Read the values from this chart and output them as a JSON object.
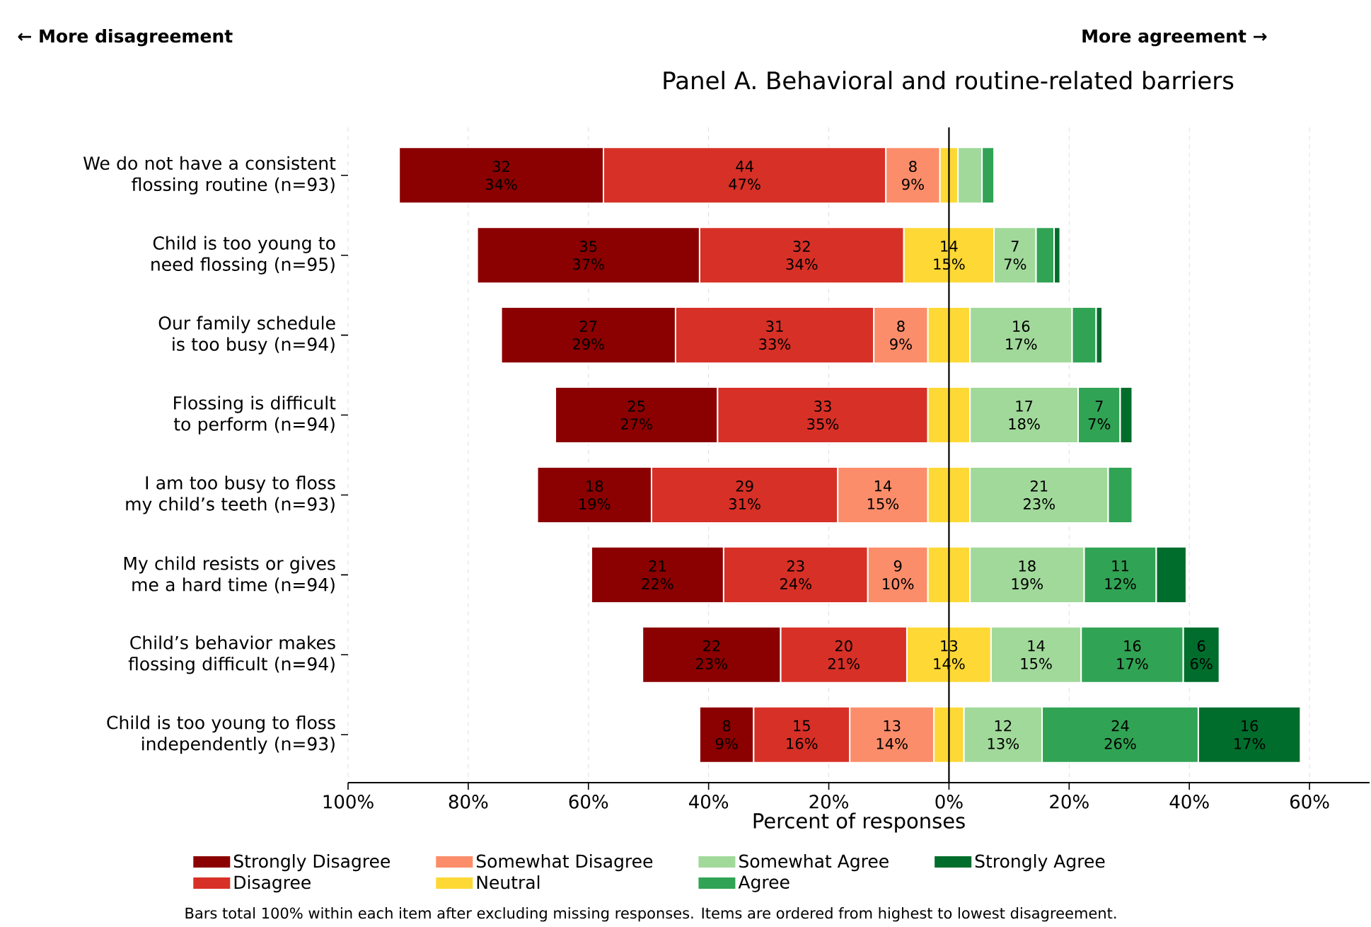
{
  "chart_data": {
    "type": "bar",
    "orientation": "horizontal",
    "title": "Panel A. Behavioral and routine-related barriers",
    "xlabel": "Percent of responses",
    "annotations": [
      "← More disagreement",
      "More agreement →",
      "Bars total 100% within each item after excluding missing responses. Items are ordered from highest to lowest disagreement."
    ],
    "categories": [
      "We do not have a consistent flossing routine (n=93)",
      "Child is too young to need flossing (n=95)",
      "Our family schedule is too busy (n=94)",
      "Flossing is difficult to perform (n=94)",
      "I am too busy to floss my child’s teeth (n=93)",
      "My child resists or gives me a hard time (n=94)",
      "Child’s behavior makes flossing difficult (n=94)",
      "Child is too young to floss independently (n=93)"
    ],
    "series": [
      {
        "name": "Strongly Disagree",
        "color": "#8b0000",
        "values": [
          34,
          37,
          29,
          27,
          19,
          22,
          23,
          9
        ],
        "base": [
          -91.5,
          -78.5,
          -74.5,
          -65.5,
          -68.5,
          -59.5,
          -51,
          -41.5
        ],
        "value_labels": [
          "32 34%",
          "35 37%",
          "27 29%",
          "25 27%",
          "18 19%",
          "21 22%",
          "22 23%",
          "8 9%"
        ]
      },
      {
        "name": "Disagree",
        "color": "#d73027",
        "values": [
          47,
          34,
          33,
          35,
          31,
          24,
          21,
          16
        ],
        "base": [
          -57.5,
          -41.5,
          -45.5,
          -38.5,
          -49.5,
          -37.5,
          -28,
          -32.5
        ],
        "value_labels": [
          "44 47%",
          "32 34%",
          "31 33%",
          "33 35%",
          "29 31%",
          "23 24%",
          "20 21%",
          "15 16%"
        ]
      },
      {
        "name": "Somewhat Disagree",
        "color": "#fc8d6a",
        "values": [
          9,
          null,
          9,
          null,
          15,
          10,
          null,
          14
        ],
        "base": [
          -10.5,
          null,
          -12.5,
          null,
          -18.5,
          -13.5,
          null,
          -16.5
        ],
        "value_labels": [
          "8 9%",
          null,
          "8 9%",
          null,
          "14 15%",
          "9 10%",
          null,
          "13 14%"
        ]
      },
      {
        "name": "Neutral",
        "color": "#fed835",
        "values": [
          3,
          15,
          7,
          7,
          7,
          7,
          14,
          5
        ],
        "base": [
          -1.5,
          -7.5,
          -3.5,
          -3.5,
          -3.5,
          -3.5,
          -7,
          -2.5
        ],
        "value_labels": [
          null,
          "14 15%",
          null,
          null,
          null,
          null,
          "13 14%",
          null
        ]
      },
      {
        "name": "Somewhat Agree",
        "color": "#a1d99b",
        "values": [
          4,
          7,
          17,
          18,
          23,
          19,
          15,
          13
        ],
        "base": [
          1.5,
          7.5,
          3.5,
          3.5,
          3.5,
          3.5,
          7,
          2.5
        ],
        "value_labels": [
          null,
          "7 7%",
          "16 17%",
          "17 18%",
          "21 23%",
          "18 19%",
          "14 15%",
          "12 13%"
        ]
      },
      {
        "name": "Agree",
        "color": "#31a354",
        "values": [
          2,
          3,
          4,
          7,
          4,
          12,
          17,
          26
        ],
        "base": [
          5.5,
          14.5,
          20.5,
          21.5,
          26.5,
          22.5,
          22,
          15.5
        ],
        "value_labels": [
          null,
          null,
          null,
          "7 7%",
          null,
          "11 12%",
          "16 17%",
          "24 26%"
        ]
      },
      {
        "name": "Strongly Agree",
        "color": "#006d2c",
        "values": [
          null,
          1,
          1,
          2,
          null,
          5,
          6,
          17
        ],
        "base": [
          null,
          17.5,
          24.5,
          28.5,
          null,
          34.5,
          39,
          41.5
        ],
        "value_labels": [
          null,
          null,
          null,
          null,
          null,
          null,
          "6 6%",
          "16 17%"
        ]
      }
    ],
    "xlim": [
      -100,
      70
    ],
    "xticks": [
      {
        "value": -100,
        "label": "100%"
      },
      {
        "value": -80,
        "label": "80%"
      },
      {
        "value": -60,
        "label": "60%"
      },
      {
        "value": -40,
        "label": "40%"
      },
      {
        "value": -20,
        "label": "20%"
      },
      {
        "value": 0,
        "label": "0%"
      },
      {
        "value": 20,
        "label": "20%"
      },
      {
        "value": 40,
        "label": "40%"
      },
      {
        "value": 60,
        "label": "60%"
      }
    ],
    "grid": "x",
    "legend": "bottom",
    "ref_lines": [
      {
        "axis": "x",
        "value": 0,
        "color": "#000000"
      }
    ]
  }
}
